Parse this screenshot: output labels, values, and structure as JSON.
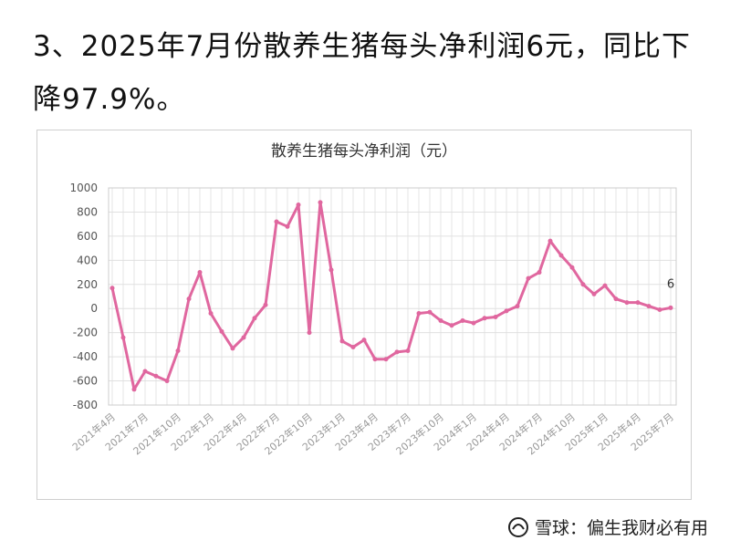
{
  "heading": "3、2025年7月份散养生猪每头净利润6元，同比下降97.9%。",
  "chart_data": {
    "type": "line",
    "title": "散养生猪每头净利润（元）",
    "categories": [
      "2021年4月",
      null,
      null,
      "2021年7月",
      null,
      null,
      "2021年10月",
      null,
      null,
      "2022年1月",
      null,
      null,
      "2022年4月",
      null,
      null,
      "2022年7月",
      null,
      null,
      "2022年10月",
      null,
      null,
      "2023年1月",
      null,
      null,
      "2023年4月",
      null,
      null,
      "2023年7月",
      null,
      null,
      "2023年10月",
      null,
      null,
      "2024年1月",
      null,
      null,
      "2024年4月",
      null,
      null,
      "2024年7月",
      null,
      null,
      "2024年10月",
      null,
      null,
      "2025年1月",
      null,
      null,
      "2025年4月",
      null,
      null,
      "2025年7月"
    ],
    "values": [
      170,
      -240,
      -670,
      -520,
      -560,
      -600,
      -350,
      80,
      300,
      -40,
      -190,
      -330,
      -240,
      -80,
      30,
      720,
      680,
      860,
      -200,
      880,
      320,
      -270,
      -320,
      -260,
      -420,
      -420,
      -360,
      -350,
      -40,
      -30,
      -100,
      -140,
      -100,
      -120,
      -80,
      -70,
      -20,
      20,
      250,
      300,
      560,
      440,
      340,
      200,
      120,
      190,
      80,
      50,
      50,
      20,
      -10,
      6
    ],
    "color": "#e0679f",
    "ylim": [
      -800,
      1000
    ],
    "yticks": [
      -800,
      -600,
      -400,
      -200,
      0,
      200,
      400,
      600,
      800,
      1000
    ],
    "grid": true
  },
  "watermark": "雪球：偏生我财必有用"
}
